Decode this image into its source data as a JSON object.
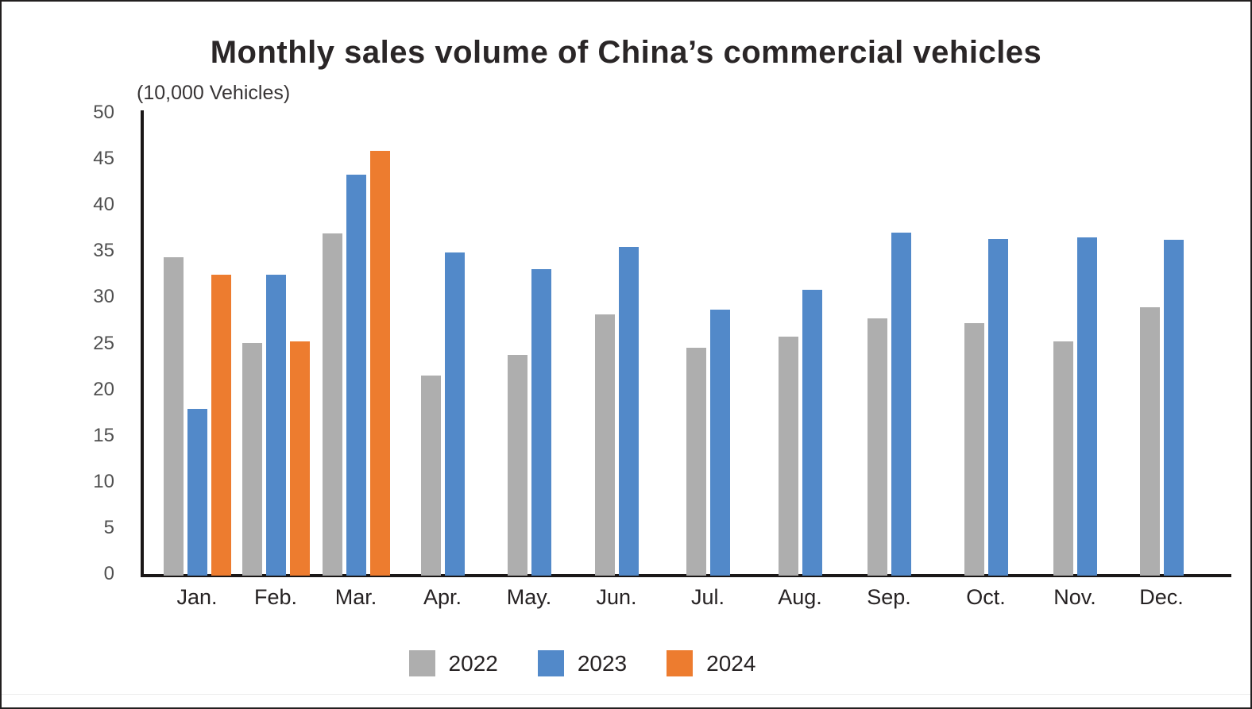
{
  "title": "Monthly sales volume of China’s commercial vehicles",
  "unit_label": "(10,000 Vehicles)",
  "colors": {
    "series_2022": "#aeaeae",
    "series_2023": "#5289c9",
    "series_2024": "#ed7c2f",
    "axis": "#1a1717",
    "tick_text": "#4f4f4f",
    "title_text": "#2a2627"
  },
  "chart_data": {
    "type": "bar",
    "title": "Monthly sales volume of China’s commercial vehicles",
    "ylabel": "(10,000 Vehicles)",
    "xlabel": "",
    "categories": [
      "Jan.",
      "Feb.",
      "Mar.",
      "Apr.",
      "May.",
      "Jun.",
      "Jul.",
      "Aug.",
      "Sep.",
      "Oct.",
      "Nov.",
      "Dec."
    ],
    "series": [
      {
        "name": "2022",
        "color": "#aeaeae",
        "values": [
          34.5,
          25.2,
          37.1,
          21.7,
          23.9,
          28.3,
          24.7,
          25.9,
          27.9,
          27.4,
          25.4,
          29.1
        ]
      },
      {
        "name": "2023",
        "color": "#5289c9",
        "values": [
          18.1,
          32.6,
          43.5,
          35,
          33.2,
          35.6,
          28.8,
          31,
          37.2,
          36.5,
          36.7,
          36.4
        ]
      },
      {
        "name": "2024",
        "color": "#ed7c2f",
        "values": [
          32.6,
          25.4,
          46,
          null,
          null,
          null,
          null,
          null,
          null,
          null,
          null,
          null
        ]
      }
    ],
    "ylim": [
      0,
      50
    ],
    "ytick_step": 5,
    "yticks": [
      "0",
      "5",
      "10",
      "15",
      "20",
      "25",
      "30",
      "35",
      "40",
      "45",
      "50"
    ],
    "grid": false,
    "legend_position": "bottom"
  },
  "legend": {
    "items": [
      {
        "label": "2022",
        "color": "#aeaeae"
      },
      {
        "label": "2023",
        "color": "#5289c9"
      },
      {
        "label": "2024",
        "color": "#ed7c2f"
      }
    ]
  }
}
